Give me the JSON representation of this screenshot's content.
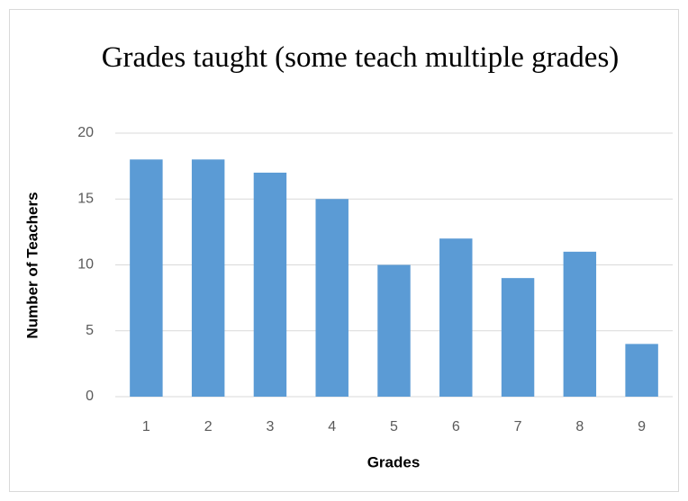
{
  "chart_data": {
    "type": "bar",
    "title": "Grades taught (some teach multiple grades)",
    "x_label": "Grades",
    "y_label": "Number of Teachers",
    "categories": [
      "1",
      "2",
      "3",
      "4",
      "5",
      "6",
      "7",
      "8",
      "9"
    ],
    "values": [
      18,
      18,
      17,
      15,
      10,
      12,
      9,
      11,
      4
    ],
    "color": "#5b9bd5",
    "ylim": [
      0,
      20
    ],
    "yticks": [
      0,
      5,
      10,
      15,
      20
    ],
    "grid": true
  }
}
